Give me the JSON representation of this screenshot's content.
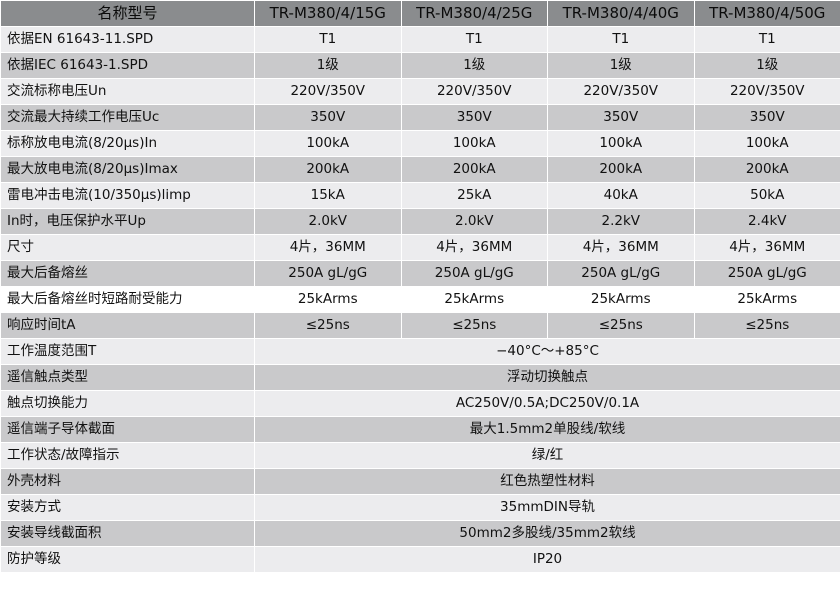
{
  "header": {
    "name_label": "名称型号",
    "models": [
      "TR-M380/4/15G",
      "TR-M380/4/25G",
      "TR-M380/4/40G",
      "TR-M380/4/50G"
    ]
  },
  "rows": [
    {
      "label": "依据EN 61643-11.SPD",
      "values": [
        "T1",
        "T1",
        "T1",
        "T1"
      ]
    },
    {
      "label": "依据IEC 61643-1.SPD",
      "values": [
        "1级",
        "1级",
        "1级",
        "1级"
      ]
    },
    {
      "label": "交流标称电压Un",
      "values": [
        "220V/350V",
        "220V/350V",
        "220V/350V",
        "220V/350V"
      ]
    },
    {
      "label": "交流最大持续工作电压Uc",
      "values": [
        "350V",
        "350V",
        "350V",
        "350V"
      ]
    },
    {
      "label": "标称放电电流(8/20μs)In",
      "values": [
        "100kA",
        "100kA",
        "100kA",
        "100kA"
      ]
    },
    {
      "label": "最大放电电流(8/20μs)Imax",
      "values": [
        "200kA",
        "200kA",
        "200kA",
        "200kA"
      ]
    },
    {
      "label": "雷电冲击电流(10/350μs)limp",
      "values": [
        "15kA",
        "25kA",
        "40kA",
        "50kA"
      ]
    },
    {
      "label": "In时，电压保护水平Up",
      "values": [
        "2.0kV",
        "2.0kV",
        "2.2kV",
        "2.4kV"
      ]
    },
    {
      "label": "尺寸",
      "values": [
        "4片，36MM",
        "4片，36MM",
        "4片，36MM",
        "4片，36MM"
      ]
    },
    {
      "label": "最大后备熔丝",
      "values": [
        "250A gL/gG",
        "250A gL/gG",
        "250A gL/gG",
        "250A gL/gG"
      ]
    },
    {
      "label": "最大后备熔丝时短路耐受能力",
      "values": [
        "25kArms",
        "25kArms",
        "25kArms",
        "25kArms"
      ]
    },
    {
      "label": "响应时间tA",
      "values": [
        "≤25ns",
        "≤25ns",
        "≤25ns",
        "≤25ns"
      ]
    }
  ],
  "merged_rows": [
    {
      "label": "工作温度范围T",
      "value": "−40°C～+85°C"
    },
    {
      "label": "遥信触点类型",
      "value": "浮动切换触点"
    },
    {
      "label": "触点切换能力",
      "value": "AC250V/0.5A;DC250V/0.1A"
    },
    {
      "label": "遥信端子导体截面",
      "value": "最大1.5mm2单股线/软线"
    },
    {
      "label": "工作状态/故障指示",
      "value": "绿/红"
    },
    {
      "label": "外壳材料",
      "value": "红色热塑性材料"
    },
    {
      "label": "安装方式",
      "value": "35mmDIN导轨"
    },
    {
      "label": "安装导线截面积",
      "value": "50mm2多股线/35mm2软线"
    },
    {
      "label": "防护等级",
      "value": "IP20"
    }
  ],
  "colors": {
    "header_bg": "#8a8c8e",
    "shade_bg": "#c9c9cb",
    "light_bg": "#ececee"
  }
}
